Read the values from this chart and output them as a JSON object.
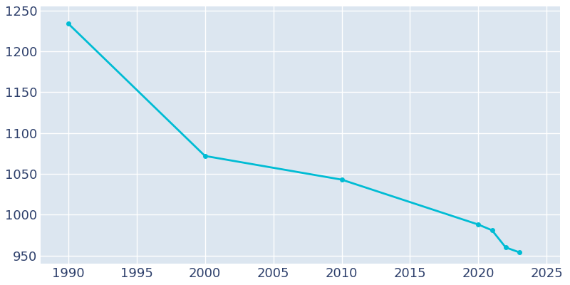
{
  "years": [
    1990,
    2000,
    2010,
    2020,
    2021,
    2022,
    2023
  ],
  "population": [
    1234,
    1072,
    1043,
    988,
    981,
    960,
    954
  ],
  "line_color": "#00bcd4",
  "marker_style": "o",
  "marker_size": 4,
  "line_width": 2,
  "plot_background_color": "#dce6f0",
  "figure_background_color": "#ffffff",
  "grid_color": "#ffffff",
  "xlim": [
    1988,
    2026
  ],
  "ylim": [
    940,
    1255
  ],
  "xticks": [
    1990,
    1995,
    2000,
    2005,
    2010,
    2015,
    2020,
    2025
  ],
  "yticks": [
    950,
    1000,
    1050,
    1100,
    1150,
    1200,
    1250
  ],
  "tick_color": "#2d3f6b",
  "tick_fontsize": 13
}
